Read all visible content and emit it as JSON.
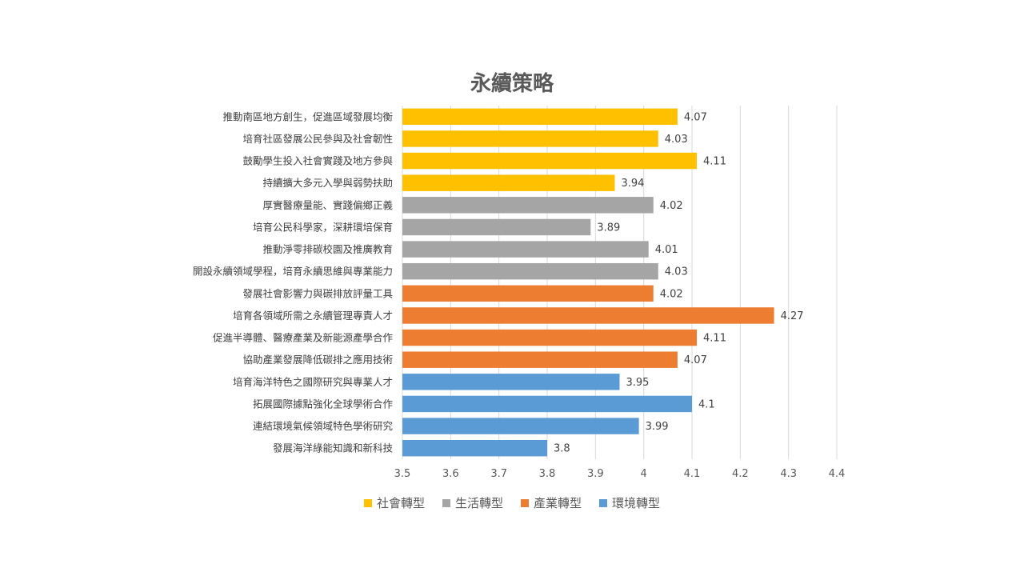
{
  "chart_data": {
    "type": "bar",
    "orientation": "horizontal",
    "title": "永續策略",
    "xlim": [
      3.5,
      4.4
    ],
    "x_ticks": [
      "3.5",
      "3.6",
      "3.7",
      "3.8",
      "3.9",
      "4",
      "4.1",
      "4.2",
      "4.3",
      "4.4"
    ],
    "grid": true,
    "legend_position": "bottom",
    "series": [
      {
        "name": "社會轉型",
        "color": "#FFC000"
      },
      {
        "name": "生活轉型",
        "color": "#A5A5A5"
      },
      {
        "name": "產業轉型",
        "color": "#ED7D31"
      },
      {
        "name": "環境轉型",
        "color": "#5B9BD5"
      }
    ],
    "bars": [
      {
        "label": "推動南區地方創生，促進區域發展均衡",
        "value": 4.07,
        "value_label": "4.07",
        "series": 0
      },
      {
        "label": "培育社區發展公民參與及社會韌性",
        "value": 4.03,
        "value_label": "4.03",
        "series": 0
      },
      {
        "label": "鼓勵學生投入社會實踐及地方參與",
        "value": 4.11,
        "value_label": "4.11",
        "series": 0
      },
      {
        "label": "持續擴大多元入學與弱勢扶助",
        "value": 3.94,
        "value_label": "3.94",
        "series": 0
      },
      {
        "label": "厚實醫療量能、實踐偏鄉正義",
        "value": 4.02,
        "value_label": "4.02",
        "series": 1
      },
      {
        "label": "培育公民科學家，深耕環培保育",
        "value": 3.89,
        "value_label": "3.89",
        "series": 1
      },
      {
        "label": "推動淨零排碳校園及推廣教育",
        "value": 4.01,
        "value_label": "4.01",
        "series": 1
      },
      {
        "label": "開設永續領域學程，培育永續思維與專業能力",
        "value": 4.03,
        "value_label": "4.03",
        "series": 1
      },
      {
        "label": "發展社會影響力與碳排放評量工具",
        "value": 4.02,
        "value_label": "4.02",
        "series": 2
      },
      {
        "label": "培育各領域所需之永續管理專責人才",
        "value": 4.27,
        "value_label": "4.27",
        "series": 2
      },
      {
        "label": "促進半導體、醫療產業及新能源產學合作",
        "value": 4.11,
        "value_label": "4.11",
        "series": 2
      },
      {
        "label": "協助產業發展降低碳排之應用技術",
        "value": 4.07,
        "value_label": "4.07",
        "series": 2
      },
      {
        "label": "培育海洋特色之國際研究與專業人才",
        "value": 3.95,
        "value_label": "3.95",
        "series": 3
      },
      {
        "label": "拓展國際據點強化全球學術合作",
        "value": 4.1,
        "value_label": "4.1",
        "series": 3
      },
      {
        "label": "連結環境氣候領域特色學術研究",
        "value": 3.99,
        "value_label": "3.99",
        "series": 3
      },
      {
        "label": "發展海洋綠能知識和新科技",
        "value": 3.8,
        "value_label": "3.8",
        "series": 3
      }
    ]
  }
}
